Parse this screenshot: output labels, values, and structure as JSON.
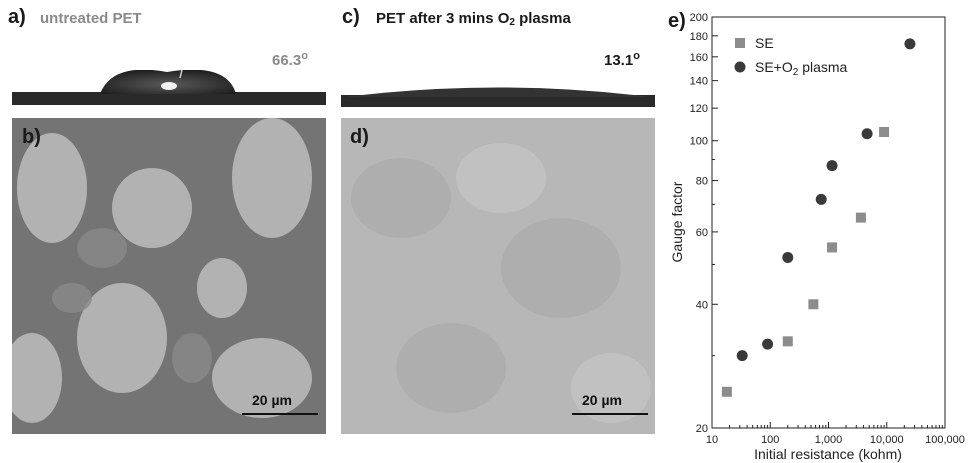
{
  "panels": {
    "a": {
      "label": "a)",
      "title": "untreated PET",
      "angle": "66.3",
      "angle_unit": "o"
    },
    "b": {
      "label": "b)",
      "scale_bar": "20 µm"
    },
    "c": {
      "label": "c)",
      "title_prefix": "PET after 3 mins O",
      "title_sub": "2",
      "title_suffix": " plasma",
      "angle": "13.1",
      "angle_unit": "o"
    },
    "d": {
      "label": "d)",
      "scale_bar": "20 µm"
    },
    "e": {
      "label": "e)"
    }
  },
  "colors": {
    "title_gray": "#8a8a8a",
    "se_marker": "#8c8c8c",
    "plasma_marker": "#3a3a3a",
    "micro_untreated_dark": "#6e6e6e",
    "micro_untreated_light": "#bdbdbd",
    "micro_plasma": "#b9b9b9"
  },
  "chart_data": {
    "type": "scatter",
    "xlabel": "Initial resistance (kohm)",
    "ylabel": "Gauge factor",
    "x_scale": "log",
    "y_scale": "log",
    "xlim": [
      10,
      100000
    ],
    "ylim": [
      20,
      200
    ],
    "x_ticks": [
      10,
      100,
      1000,
      10000,
      100000
    ],
    "x_tick_labels": [
      "10",
      "100",
      "1,000",
      "10,000",
      "100,000"
    ],
    "y_ticks": [
      20,
      40,
      60,
      80,
      100,
      120,
      140,
      160,
      180,
      200
    ],
    "y_tick_labels": [
      "20",
      "40",
      "60",
      "80",
      "100",
      "120",
      "140",
      "160",
      "180",
      "200"
    ],
    "legend_position": "top-left",
    "series": [
      {
        "name": "SE",
        "marker": "square",
        "x": [
          18,
          200,
          550,
          1150,
          3600,
          9000
        ],
        "y": [
          24.5,
          32.5,
          40,
          55,
          65,
          105
        ]
      },
      {
        "name": "SE+O2 plasma",
        "legend_prefix": "SE+O",
        "legend_sub": "2",
        "legend_suffix": " plasma",
        "marker": "circle",
        "x": [
          33,
          90,
          200,
          750,
          1150,
          4600,
          25000
        ],
        "y": [
          30,
          32,
          52,
          72,
          87,
          104,
          172
        ]
      }
    ]
  }
}
